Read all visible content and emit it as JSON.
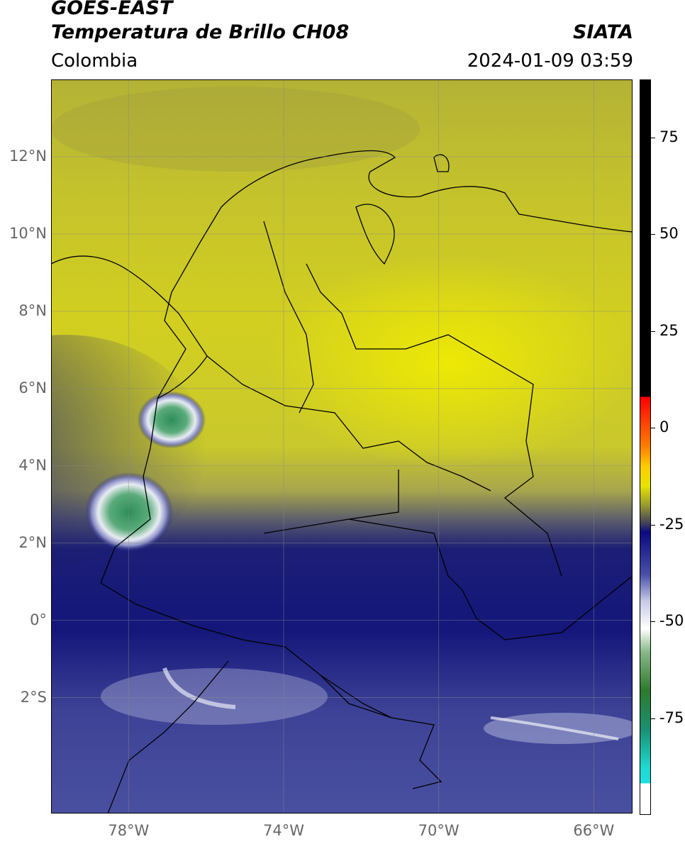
{
  "header": {
    "satellite": "GOES-EAST",
    "product": "Temperatura de Brillo CH08",
    "region": "Colombia",
    "organization": "SIATA",
    "datetime": "2024-01-09 03:59"
  },
  "map": {
    "extent": {
      "lon_min": -80,
      "lon_max": -65,
      "lat_min": -5,
      "lat_max": 14
    },
    "lat_ticks": [
      {
        "lat": 12,
        "label": "12°N"
      },
      {
        "lat": 10,
        "label": "10°N"
      },
      {
        "lat": 8,
        "label": "8°N"
      },
      {
        "lat": 6,
        "label": "6°N"
      },
      {
        "lat": 4,
        "label": "4°N"
      },
      {
        "lat": 2,
        "label": "2°N"
      },
      {
        "lat": 0,
        "label": "0°"
      },
      {
        "lat": -2,
        "label": "2°S"
      }
    ],
    "lon_ticks": [
      {
        "lon": -78,
        "label": "78°W"
      },
      {
        "lon": -74,
        "label": "74°W"
      },
      {
        "lon": -70,
        "label": "70°W"
      },
      {
        "lon": -66,
        "label": "66°W"
      }
    ],
    "grid": true,
    "colors": {
      "warm_yellow": "#e8e400",
      "olive": "#9c9a3a",
      "cold_navy": "#14157a",
      "mid_blue": "#3a3f9a",
      "pale": "#c8cbe6",
      "convective_green": "#3a9a6a"
    }
  },
  "colorbar": {
    "range": [
      -100,
      90
    ],
    "ticks": [
      {
        "value": 75,
        "label": "75"
      },
      {
        "value": 50,
        "label": "50"
      },
      {
        "value": 25,
        "label": "25"
      },
      {
        "value": 0,
        "label": "0"
      },
      {
        "value": -25,
        "label": "-25"
      },
      {
        "value": -50,
        "label": "-50"
      },
      {
        "value": -75,
        "label": "-75"
      }
    ]
  }
}
